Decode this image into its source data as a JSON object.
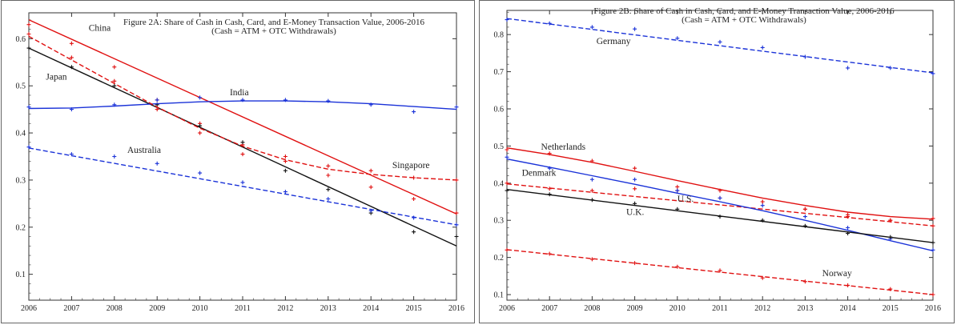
{
  "chart_data": [
    {
      "id": "a",
      "type": "line",
      "title": "Figure 2A: Share of Cash in Cash, Card, and E-Money Transaction Value, 2006-2016",
      "subtitle": "(Cash = ATM + OTC Withdrawals)",
      "xlabel": "",
      "ylabel": "",
      "xlim": [
        2006,
        2016
      ],
      "ylim": [
        0.045,
        0.655
      ],
      "x_ticks": [
        2006,
        2007,
        2008,
        2009,
        2010,
        2011,
        2012,
        2013,
        2014,
        2015,
        2016
      ],
      "y_ticks": [
        0.1,
        0.2,
        0.3,
        0.4,
        0.5,
        0.6
      ],
      "x": [
        2006,
        2007,
        2008,
        2009,
        2010,
        2011,
        2012,
        2013,
        2014,
        2015,
        2016
      ],
      "series": [
        {
          "name": "China",
          "color": "#e01010",
          "dash": false,
          "label_at": [
            2007.4,
            0.617
          ],
          "values": [
            0.63,
            0.59,
            0.54,
            0.47,
            0.42,
            0.375,
            0.34,
            0.31,
            0.285,
            0.26,
            0.23
          ],
          "fit": [
            0.64,
            0.228
          ]
        },
        {
          "name": "Japan",
          "color": "#111111",
          "dash": false,
          "label_at": [
            2006.4,
            0.513
          ],
          "values": [
            0.58,
            0.54,
            0.5,
            0.46,
            0.415,
            0.38,
            0.32,
            0.28,
            0.23,
            0.19,
            0.18
          ],
          "fit": [
            0.58,
            0.16
          ]
        },
        {
          "name": "India",
          "color": "#1a32d8",
          "dash": false,
          "label_at": [
            2010.7,
            0.48
          ],
          "values": [
            0.455,
            0.45,
            0.46,
            0.47,
            0.475,
            0.47,
            0.47,
            0.468,
            0.46,
            0.445,
            0.455
          ],
          "curve": [
            0.452,
            0.453,
            0.457,
            0.462,
            0.466,
            0.468,
            0.468,
            0.466,
            0.462,
            0.456,
            0.45
          ]
        },
        {
          "name": "Australia",
          "color": "#1a32d8",
          "dash": true,
          "label_at": [
            2008.3,
            0.358
          ],
          "values": [
            0.37,
            0.355,
            0.35,
            0.335,
            0.315,
            0.295,
            0.275,
            0.26,
            0.235,
            0.22,
            0.205
          ],
          "fit": [
            0.368,
            0.205
          ]
        },
        {
          "name": "Singapore",
          "color": "#e01010",
          "dash": true,
          "label_at": [
            2014.5,
            0.325
          ],
          "values": [
            0.61,
            0.56,
            0.51,
            0.45,
            0.4,
            0.355,
            0.35,
            0.33,
            0.32,
            0.305,
            0.3
          ],
          "curve": [
            0.605,
            0.555,
            0.505,
            0.455,
            0.41,
            0.372,
            0.343,
            0.323,
            0.312,
            0.305,
            0.3
          ]
        }
      ]
    },
    {
      "id": "b",
      "type": "line",
      "title": "Figure 2B: Share of Cash in Cash, Card, and E-Money Transaction Value, 2006-2016",
      "subtitle": "(Cash = ATM + OTC Withdrawals)",
      "xlabel": "",
      "ylabel": "",
      "xlim": [
        2006,
        2016
      ],
      "ylim": [
        0.085,
        0.865
      ],
      "x_ticks": [
        2006,
        2007,
        2008,
        2009,
        2010,
        2011,
        2012,
        2013,
        2014,
        2015,
        2016
      ],
      "y_ticks": [
        0.1,
        0.2,
        0.3,
        0.4,
        0.5,
        0.6,
        0.7,
        0.8
      ],
      "x": [
        2006,
        2007,
        2008,
        2009,
        2010,
        2011,
        2012,
        2013,
        2014,
        2015,
        2016
      ],
      "series": [
        {
          "name": "Germany",
          "color": "#1a32d8",
          "dash": true,
          "label_at": [
            2008.1,
            0.775
          ],
          "values": [
            0.84,
            0.83,
            0.82,
            0.815,
            0.79,
            0.78,
            0.765,
            0.74,
            0.71,
            0.71,
            0.695
          ],
          "fit": [
            0.843,
            0.697
          ]
        },
        {
          "name": "Netherlands",
          "color": "#e01010",
          "dash": false,
          "label_at": [
            2006.8,
            0.49
          ],
          "values": [
            0.49,
            0.48,
            0.46,
            0.44,
            0.39,
            0.38,
            0.35,
            0.33,
            0.315,
            0.3,
            0.305
          ],
          "curve": [
            0.495,
            0.477,
            0.456,
            0.432,
            0.407,
            0.383,
            0.36,
            0.34,
            0.322,
            0.31,
            0.303
          ]
        },
        {
          "name": "Denmark",
          "color": "#e01010",
          "dash": true,
          "label_at": [
            2006.35,
            0.42
          ],
          "values": [
            0.4,
            0.385,
            0.38,
            0.385,
            0.38,
            0.36,
            0.35,
            0.33,
            0.31,
            0.3,
            0.285
          ],
          "fit": [
            0.398,
            0.285
          ]
        },
        {
          "name": "U.S.",
          "color": "#1a32d8",
          "dash": false,
          "label_at": [
            2010,
            0.35
          ],
          "values": [
            0.47,
            0.44,
            0.41,
            0.41,
            0.38,
            0.36,
            0.34,
            0.31,
            0.28,
            0.25,
            0.22
          ],
          "curve": [
            0.465,
            0.443,
            0.42,
            0.397,
            0.373,
            0.35,
            0.326,
            0.3,
            0.273,
            0.245,
            0.218
          ]
        },
        {
          "name": "U.K.",
          "color": "#111111",
          "dash": false,
          "label_at": [
            2008.8,
            0.315
          ],
          "values": [
            0.38,
            0.37,
            0.355,
            0.345,
            0.33,
            0.31,
            0.3,
            0.285,
            0.265,
            0.255,
            0.24
          ],
          "fit": [
            0.383,
            0.24
          ]
        },
        {
          "name": "Norway",
          "color": "#e01010",
          "dash": true,
          "label_at": [
            2013.4,
            0.15
          ],
          "values": [
            0.22,
            0.21,
            0.195,
            0.185,
            0.175,
            0.165,
            0.145,
            0.135,
            0.125,
            0.115,
            0.1
          ],
          "fit": [
            0.221,
            0.1
          ]
        }
      ]
    }
  ]
}
